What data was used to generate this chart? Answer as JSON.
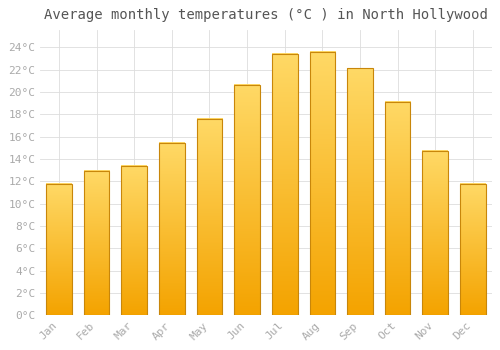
{
  "months": [
    "Jan",
    "Feb",
    "Mar",
    "Apr",
    "May",
    "Jun",
    "Jul",
    "Aug",
    "Sep",
    "Oct",
    "Nov",
    "Dec"
  ],
  "temperatures": [
    11.8,
    12.9,
    13.4,
    15.4,
    17.6,
    20.6,
    23.4,
    23.6,
    22.1,
    19.1,
    14.7,
    11.8
  ],
  "bar_color_top": "#FFD966",
  "bar_color_bottom": "#F4A300",
  "bar_edge_color": "#C8860A",
  "background_color": "#FFFFFF",
  "plot_bg_color": "#FFFFFF",
  "grid_color": "#DDDDDD",
  "title": "Average monthly temperatures (°C ) in North Hollywood",
  "title_fontsize": 10,
  "tick_label_color": "#AAAAAA",
  "axis_label_fontsize": 8,
  "ylim": [
    0,
    25.5
  ],
  "yticks": [
    0,
    2,
    4,
    6,
    8,
    10,
    12,
    14,
    16,
    18,
    20,
    22,
    24
  ]
}
